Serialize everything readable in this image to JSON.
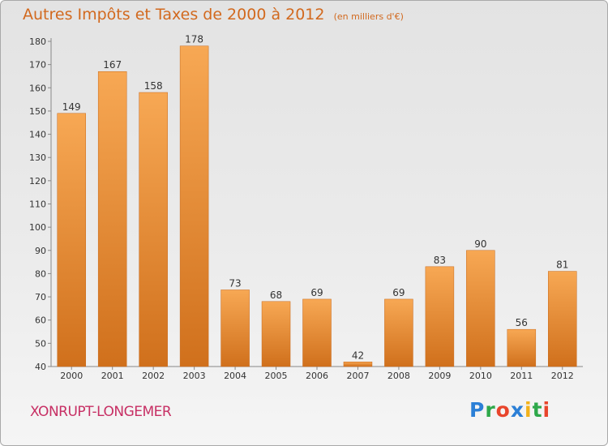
{
  "header": {
    "title": "Autres Impôts et Taxes de 2000 à 2012",
    "subtitle": "(en milliers d'€)"
  },
  "footer": {
    "city": "XONRUPT-LONGEMER",
    "brand": [
      "P",
      "r",
      "o",
      "x",
      "i",
      "t",
      "i"
    ],
    "brand_colors": [
      "#2b7fd6",
      "#2ea84a",
      "#e8452c",
      "#2b7fd6",
      "#f2b21c",
      "#2ea84a",
      "#e8452c"
    ]
  },
  "colors": {
    "bar_light": "#f7a854",
    "bar_dark": "#d0701c",
    "label": "#333333",
    "title": "#d2691e",
    "city": "#c72f64"
  },
  "chart_data": {
    "type": "bar",
    "title": "Autres Impôts et Taxes de 2000 à 2012",
    "subtitle": "(en milliers d'€)",
    "categories": [
      "2000",
      "2001",
      "2002",
      "2003",
      "2004",
      "2005",
      "2006",
      "2007",
      "2008",
      "2009",
      "2010",
      "2011",
      "2012"
    ],
    "values": [
      149,
      167,
      158,
      178,
      73,
      68,
      69,
      42,
      69,
      83,
      90,
      56,
      81
    ],
    "ylim": [
      40,
      180
    ],
    "yticks": [
      40,
      50,
      60,
      70,
      80,
      90,
      100,
      110,
      120,
      130,
      140,
      150,
      160,
      170,
      180
    ],
    "grid": false,
    "data_labels": true
  }
}
